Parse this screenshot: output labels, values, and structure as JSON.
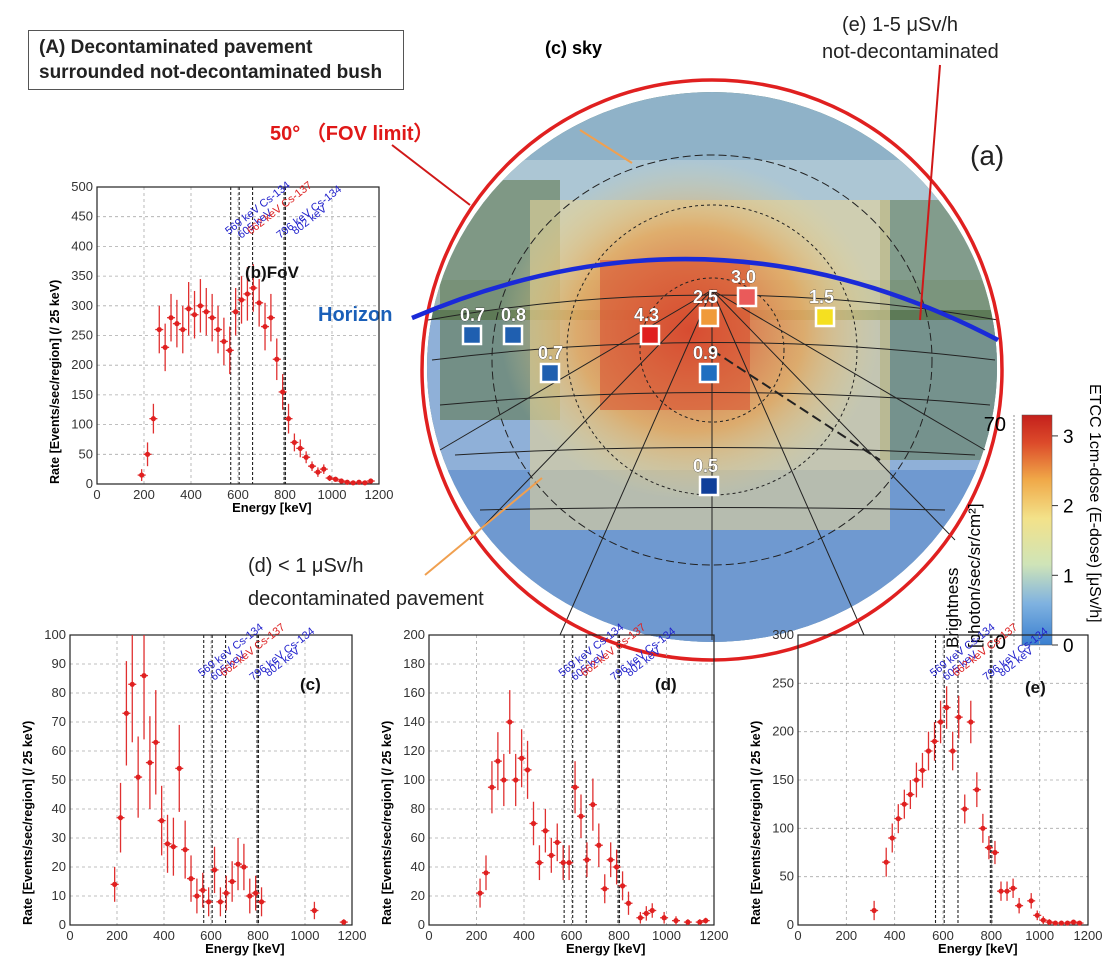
{
  "panel_a": {
    "title_line1": "(A)  Decontaminated pavement",
    "title_line2": "surrounded not-decontaminated bush",
    "panel_label": "(a)",
    "sky_label": "(c) sky",
    "fov_label": "50°  （FOV limit）",
    "horizon_label": "Horizon",
    "e_label_line1": "(e) 1-5 μSv/h",
    "e_label_line2": "not-decontaminated",
    "d_label_line1": "(d) < 1 μSv/h",
    "d_label_line2": "decontaminated pavement",
    "colorbar": {
      "brightness_label": "Brightness",
      "brightness_unit": "[photon/sec/sr/cm²]",
      "brightness_max": "70",
      "brightness_min": "0",
      "dose_label": "ETCC 1cm-dose (E-dose) [μSv/h]",
      "dose_ticks": [
        "3",
        "2",
        "1",
        "0"
      ],
      "dose_ticks_values": [
        3,
        2,
        1,
        0
      ],
      "dose_max": 3.3,
      "colors": [
        "#3a7fd0",
        "#7fb2e0",
        "#cfe4b8",
        "#f3e28a",
        "#f0a848",
        "#dc4a2a",
        "#c4201c"
      ]
    },
    "markers": [
      {
        "value": "0.7",
        "color": "#1f5fb0",
        "dose": 0.7
      },
      {
        "value": "0.8",
        "color": "#1f5fb0",
        "dose": 0.8
      },
      {
        "value": "0.7",
        "color": "#1f5fb0",
        "dose": 0.7
      },
      {
        "value": "4.3",
        "color": "#e02020",
        "dose": 4.3
      },
      {
        "value": "2.5",
        "color": "#f09a3a",
        "dose": 2.5
      },
      {
        "value": "3.0",
        "color": "#ea5a5a",
        "dose": 3.0
      },
      {
        "value": "1.5",
        "color": "#f5e020",
        "dose": 1.5
      },
      {
        "value": "0.9",
        "color": "#1f6fc0",
        "dose": 0.9
      },
      {
        "value": "0.5",
        "color": "#0f3f9a",
        "dose": 0.5
      }
    ]
  },
  "chart_data": [
    {
      "type": "scatter",
      "panel_label": "(b)FoV",
      "xlabel": "Energy [keV]",
      "ylabel": "Rate [Events/sec/region] (/ 25 keV)",
      "xlim": [
        0,
        1200
      ],
      "ylim": [
        0,
        500
      ],
      "xticks": [
        "0",
        "200",
        "400",
        "600",
        "800",
        "1000",
        "1200"
      ],
      "yticks": [
        "0",
        "50",
        "100",
        "150",
        "200",
        "250",
        "300",
        "350",
        "400",
        "450",
        "500"
      ],
      "line_annotations": [
        {
          "text": "569 keV Cs-134",
          "color": "#2222cc"
        },
        {
          "text": "605 keV",
          "color": "#2222cc"
        },
        {
          "text": "662 keV Cs-137",
          "color": "#dd2222"
        },
        {
          "text": "796 keV Cs-134",
          "color": "#2222cc"
        },
        {
          "text": "802 keV",
          "color": "#2222cc"
        }
      ],
      "lines_keV": [
        569,
        605,
        662,
        796,
        802
      ],
      "x": [
        190,
        215,
        240,
        265,
        290,
        315,
        340,
        365,
        390,
        415,
        440,
        465,
        490,
        515,
        540,
        565,
        590,
        615,
        640,
        665,
        690,
        715,
        740,
        765,
        790,
        815,
        840,
        865,
        890,
        915,
        940,
        965,
        990,
        1015,
        1040,
        1065,
        1090,
        1115,
        1140,
        1165
      ],
      "y": [
        15,
        50,
        110,
        260,
        230,
        280,
        270,
        260,
        295,
        285,
        300,
        290,
        280,
        260,
        240,
        225,
        290,
        310,
        320,
        330,
        305,
        265,
        280,
        210,
        155,
        110,
        70,
        60,
        45,
        30,
        20,
        25,
        10,
        8,
        5,
        3,
        2,
        3,
        2,
        5
      ],
      "err": [
        10,
        20,
        25,
        40,
        40,
        40,
        40,
        40,
        45,
        40,
        45,
        40,
        40,
        40,
        40,
        40,
        40,
        40,
        45,
        40,
        40,
        40,
        40,
        35,
        30,
        25,
        15,
        15,
        10,
        8,
        8,
        8,
        5,
        4,
        3,
        2,
        2,
        2,
        2,
        3
      ]
    },
    {
      "type": "scatter",
      "panel_label": "(c)",
      "xlabel": "Energy [keV]",
      "ylabel": "Rate [Events/sec/region] (/ 25 keV)",
      "xlim": [
        0,
        1200
      ],
      "ylim": [
        0,
        100
      ],
      "xticks": [
        "0",
        "200",
        "400",
        "600",
        "800",
        "1000",
        "1200"
      ],
      "yticks": [
        "0",
        "10",
        "20",
        "30",
        "40",
        "50",
        "60",
        "70",
        "80",
        "90",
        "100"
      ],
      "line_annotations": [
        {
          "text": "569 keV Cs-134",
          "color": "#2222cc"
        },
        {
          "text": "605 keV",
          "color": "#2222cc"
        },
        {
          "text": "662 keV Cs-137",
          "color": "#dd2222"
        },
        {
          "text": "796 keV Cs-134",
          "color": "#2222cc"
        },
        {
          "text": "802 keV",
          "color": "#2222cc"
        }
      ],
      "lines_keV": [
        569,
        605,
        662,
        796,
        802
      ],
      "x": [
        190,
        215,
        240,
        265,
        290,
        315,
        340,
        365,
        390,
        415,
        440,
        465,
        490,
        515,
        540,
        565,
        590,
        615,
        640,
        665,
        690,
        715,
        740,
        765,
        790,
        815,
        1040,
        1165
      ],
      "y": [
        14,
        37,
        73,
        83,
        51,
        86,
        56,
        63,
        36,
        28,
        27,
        54,
        26,
        16,
        10,
        12,
        8,
        19,
        8,
        11,
        15,
        21,
        20,
        10,
        11,
        8,
        5,
        1
      ],
      "err": [
        6,
        12,
        18,
        20,
        14,
        22,
        16,
        18,
        12,
        10,
        10,
        15,
        10,
        8,
        6,
        6,
        5,
        8,
        5,
        6,
        7,
        9,
        8,
        6,
        6,
        5,
        3,
        1
      ]
    },
    {
      "type": "scatter",
      "panel_label": "(d)",
      "xlabel": "Energy [keV]",
      "ylabel": "Rate [Events/sec/region] (/ 25 keV)",
      "xlim": [
        0,
        1200
      ],
      "ylim": [
        0,
        200
      ],
      "xticks": [
        "0",
        "200",
        "400",
        "600",
        "800",
        "1000",
        "1200"
      ],
      "yticks": [
        "0",
        "20",
        "40",
        "60",
        "80",
        "100",
        "120",
        "140",
        "160",
        "180",
        "200"
      ],
      "line_annotations": [
        {
          "text": "569 keV Cs-134",
          "color": "#2222cc"
        },
        {
          "text": "605 keV",
          "color": "#2222cc"
        },
        {
          "text": "662 keV Cs-137",
          "color": "#dd2222"
        },
        {
          "text": "796 keV Cs-134",
          "color": "#2222cc"
        },
        {
          "text": "802 keV",
          "color": "#2222cc"
        }
      ],
      "lines_keV": [
        569,
        605,
        662,
        796,
        802
      ],
      "x": [
        215,
        240,
        265,
        290,
        315,
        340,
        365,
        390,
        415,
        440,
        465,
        490,
        515,
        540,
        565,
        590,
        615,
        640,
        665,
        690,
        715,
        740,
        765,
        790,
        815,
        840,
        890,
        915,
        940,
        990,
        1040,
        1090,
        1140,
        1165
      ],
      "y": [
        22,
        36,
        95,
        113,
        100,
        140,
        100,
        115,
        107,
        70,
        43,
        65,
        48,
        57,
        43,
        43,
        95,
        75,
        45,
        83,
        55,
        25,
        45,
        40,
        27,
        15,
        5,
        8,
        10,
        5,
        3,
        2,
        2,
        3
      ],
      "err": [
        10,
        12,
        18,
        20,
        18,
        22,
        18,
        20,
        20,
        15,
        12,
        15,
        12,
        13,
        12,
        12,
        18,
        15,
        12,
        18,
        15,
        10,
        12,
        12,
        10,
        8,
        4,
        5,
        5,
        4,
        3,
        2,
        2,
        2
      ]
    },
    {
      "type": "scatter",
      "panel_label": "(e)",
      "xlabel": "Energy [keV]",
      "ylabel": "Rate [Events/sec/region] (/ 25 keV)",
      "xlim": [
        0,
        1200
      ],
      "ylim": [
        0,
        300
      ],
      "xticks": [
        "0",
        "200",
        "400",
        "600",
        "800",
        "1000",
        "1200"
      ],
      "yticks": [
        "0",
        "50",
        "100",
        "150",
        "200",
        "250",
        "300"
      ],
      "line_annotations": [
        {
          "text": "569 keV Cs-134",
          "color": "#2222cc"
        },
        {
          "text": "605 keV",
          "color": "#2222cc"
        },
        {
          "text": "662 keV Cs-137",
          "color": "#dd2222"
        },
        {
          "text": "796 keV Cs-134",
          "color": "#2222cc"
        },
        {
          "text": "802 keV",
          "color": "#2222cc"
        }
      ],
      "lines_keV": [
        569,
        605,
        662,
        796,
        802
      ],
      "x": [
        315,
        365,
        390,
        415,
        440,
        465,
        490,
        515,
        540,
        565,
        590,
        615,
        640,
        665,
        690,
        715,
        740,
        765,
        790,
        815,
        840,
        865,
        890,
        915,
        965,
        990,
        1015,
        1040,
        1065,
        1090,
        1115,
        1140,
        1165
      ],
      "y": [
        15,
        65,
        90,
        110,
        125,
        135,
        150,
        160,
        180,
        190,
        210,
        225,
        180,
        215,
        120,
        210,
        140,
        100,
        80,
        75,
        35,
        35,
        38,
        20,
        25,
        10,
        5,
        3,
        2,
        2,
        2,
        3,
        2
      ],
      "err": [
        10,
        15,
        15,
        15,
        15,
        15,
        18,
        18,
        20,
        20,
        22,
        22,
        20,
        22,
        15,
        22,
        18,
        15,
        12,
        12,
        10,
        10,
        10,
        8,
        8,
        5,
        4,
        3,
        2,
        2,
        2,
        2,
        2
      ]
    }
  ]
}
